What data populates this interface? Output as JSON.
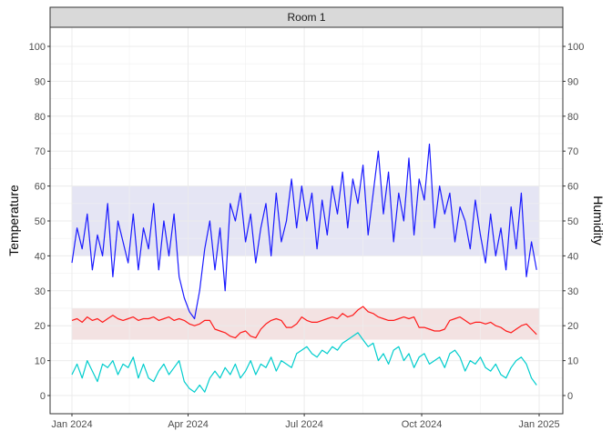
{
  "chart_data": {
    "type": "line",
    "facet_label": "Room 1",
    "ylabel": "Temperature",
    "ylabel_right": "Humidity",
    "xlabel": "",
    "ylim": [
      -5.2,
      105.5
    ],
    "xlim": [
      "2024-01-01",
      "2025-01-01"
    ],
    "y_ticks": [
      0,
      10,
      20,
      30,
      40,
      50,
      60,
      70,
      80,
      90,
      100
    ],
    "x_ticks": [
      {
        "date": "2024-01-01",
        "label": "Jan 2024"
      },
      {
        "date": "2024-04-01",
        "label": "Apr 2024"
      },
      {
        "date": "2024-07-01",
        "label": "Jul 2024"
      },
      {
        "date": "2024-10-01",
        "label": "Oct 2024"
      },
      {
        "date": "2025-01-01",
        "label": "Jan 2025"
      }
    ],
    "x_minor_ticks": [
      "2024-02-15",
      "2024-05-16",
      "2024-08-16",
      "2024-11-16"
    ],
    "grid": true,
    "bands": [
      {
        "ymin": 40,
        "ymax": 60,
        "color": "#e5e5f4"
      },
      {
        "ymin": 16,
        "ymax": 25,
        "color": "#f3e2e2"
      }
    ],
    "x": [
      "2024-01-01",
      "2024-01-05",
      "2024-01-09",
      "2024-01-13",
      "2024-01-17",
      "2024-01-21",
      "2024-01-25",
      "2024-01-29",
      "2024-02-02",
      "2024-02-06",
      "2024-02-10",
      "2024-02-14",
      "2024-02-18",
      "2024-02-22",
      "2024-02-26",
      "2024-03-01",
      "2024-03-05",
      "2024-03-09",
      "2024-03-13",
      "2024-03-17",
      "2024-03-21",
      "2024-03-25",
      "2024-03-29",
      "2024-04-02",
      "2024-04-06",
      "2024-04-10",
      "2024-04-14",
      "2024-04-18",
      "2024-04-22",
      "2024-04-26",
      "2024-04-30",
      "2024-05-04",
      "2024-05-08",
      "2024-05-12",
      "2024-05-16",
      "2024-05-20",
      "2024-05-24",
      "2024-05-28",
      "2024-06-01",
      "2024-06-05",
      "2024-06-09",
      "2024-06-13",
      "2024-06-17",
      "2024-06-21",
      "2024-06-25",
      "2024-06-29",
      "2024-07-03",
      "2024-07-07",
      "2024-07-11",
      "2024-07-15",
      "2024-07-19",
      "2024-07-23",
      "2024-07-27",
      "2024-07-31",
      "2024-08-04",
      "2024-08-08",
      "2024-08-12",
      "2024-08-16",
      "2024-08-20",
      "2024-08-24",
      "2024-08-28",
      "2024-09-01",
      "2024-09-05",
      "2024-09-09",
      "2024-09-13",
      "2024-09-17",
      "2024-09-21",
      "2024-09-25",
      "2024-09-29",
      "2024-10-03",
      "2024-10-07",
      "2024-10-11",
      "2024-10-15",
      "2024-10-19",
      "2024-10-23",
      "2024-10-27",
      "2024-10-31",
      "2024-11-04",
      "2024-11-08",
      "2024-11-12",
      "2024-11-16",
      "2024-11-20",
      "2024-11-24",
      "2024-11-28",
      "2024-12-02",
      "2024-12-06",
      "2024-12-10",
      "2024-12-14",
      "2024-12-18",
      "2024-12-22",
      "2024-12-26",
      "2024-12-30"
    ],
    "series": [
      {
        "color": "#1a1aff",
        "values": [
          38,
          48,
          42,
          52,
          36,
          46,
          40,
          55,
          34,
          50,
          44,
          38,
          52,
          36,
          48,
          42,
          55,
          36,
          50,
          40,
          52,
          34,
          28,
          24,
          22,
          30,
          42,
          50,
          36,
          48,
          30,
          55,
          50,
          58,
          44,
          52,
          38,
          48,
          55,
          40,
          58,
          44,
          50,
          62,
          48,
          60,
          50,
          58,
          42,
          56,
          46,
          60,
          52,
          64,
          48,
          62,
          55,
          66,
          46,
          58,
          70,
          52,
          64,
          44,
          58,
          50,
          68,
          46,
          62,
          56,
          72,
          48,
          60,
          52,
          58,
          44,
          54,
          50,
          42,
          56,
          46,
          38,
          52,
          40,
          48,
          36,
          54,
          42,
          58,
          34,
          44,
          36
        ]
      },
      {
        "color": "#ff1a1a",
        "values": [
          21.5,
          22,
          21,
          22.5,
          21.5,
          22,
          21,
          22,
          23,
          22,
          21.5,
          22,
          22.5,
          21.5,
          22,
          22,
          22.5,
          21.5,
          22,
          22.5,
          21.5,
          22,
          21.5,
          20.5,
          20,
          20.5,
          21.5,
          21.5,
          19,
          18.5,
          18,
          17,
          16.5,
          18,
          18.5,
          17,
          16.5,
          19,
          20.5,
          21.5,
          22,
          21.5,
          19.5,
          19.5,
          20.5,
          22.5,
          21.5,
          21,
          21,
          21.5,
          22,
          22.5,
          22,
          23.5,
          22.5,
          23,
          24.5,
          25.5,
          24,
          23.5,
          22.5,
          22,
          21.5,
          21.5,
          22,
          22.5,
          22,
          22.5,
          19.5,
          19.5,
          19,
          18.5,
          18.5,
          19,
          21.5,
          22,
          22.5,
          21.5,
          20.5,
          21,
          21,
          20.5,
          21,
          20,
          19.5,
          18.5,
          18,
          19,
          20,
          20.5,
          19,
          17.5
        ]
      },
      {
        "color": "#00cdcd",
        "values": [
          6,
          9,
          5,
          10,
          7,
          4,
          9,
          8,
          10,
          6,
          9,
          8,
          11,
          5,
          9,
          5,
          4,
          7,
          9,
          6,
          8,
          10,
          4,
          2,
          1,
          3,
          1,
          5,
          7,
          5,
          8,
          6,
          9,
          5,
          7,
          10,
          6,
          9,
          8,
          11,
          7,
          10,
          9,
          8,
          12,
          13,
          14,
          12,
          11,
          13,
          12,
          14,
          13,
          15,
          16,
          17,
          18,
          16,
          14,
          15,
          10,
          12,
          9,
          13,
          14,
          10,
          12,
          8,
          11,
          12,
          9,
          10,
          11,
          8,
          12,
          13,
          11,
          7,
          10,
          9,
          11,
          8,
          7,
          9,
          6,
          5,
          8,
          10,
          11,
          9,
          5,
          3
        ]
      }
    ]
  }
}
